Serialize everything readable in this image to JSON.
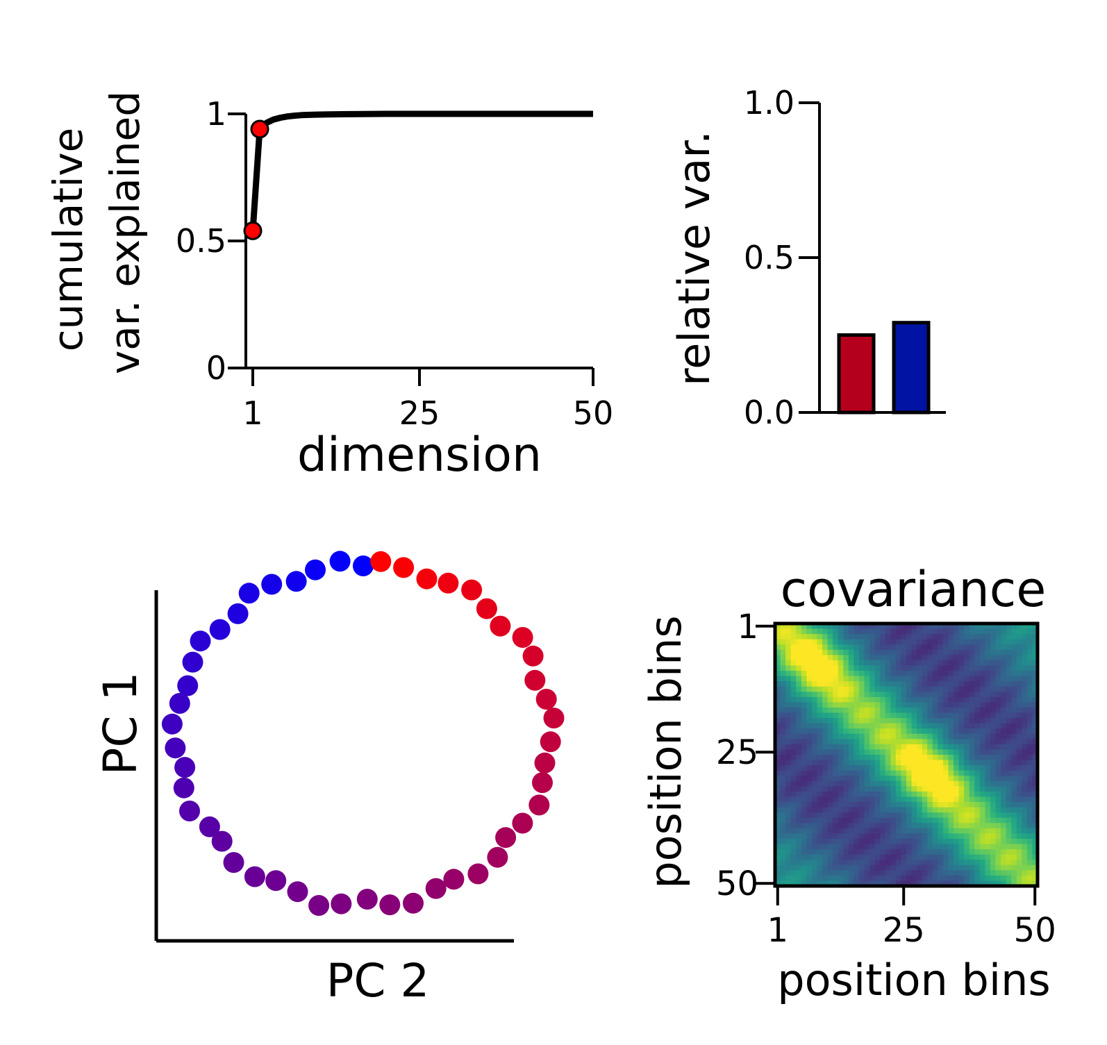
{
  "chart_data": [
    {
      "type": "line",
      "xlabel": "dimension",
      "ylabel": [
        "cumulative",
        "var. explained"
      ],
      "xlim": [
        0,
        50
      ],
      "ylim": [
        0,
        1
      ],
      "xticks": [
        1,
        25,
        50
      ],
      "xtick_labels": [
        "1",
        "25",
        "50"
      ],
      "yticks": [
        0,
        0.5,
        1
      ],
      "ytick_labels": [
        "0",
        "0.5",
        "1"
      ],
      "line_color": "#000000",
      "marker_color": "#ff0000",
      "series": [
        {
          "x": [
            1,
            2,
            3,
            4,
            5,
            6,
            7,
            8,
            10,
            12,
            15,
            20,
            25,
            30,
            40,
            50
          ],
          "values": [
            0.54,
            0.94,
            0.965,
            0.978,
            0.985,
            0.99,
            0.993,
            0.995,
            0.997,
            0.998,
            0.999,
            1.0,
            1.0,
            1.0,
            1.0,
            1.0
          ]
        }
      ],
      "highlighted_points": [
        {
          "x": 1,
          "y": 0.54
        },
        {
          "x": 2,
          "y": 0.94
        }
      ]
    },
    {
      "type": "bar",
      "ylabel": "relative var.",
      "ylim": [
        0,
        1
      ],
      "yticks": [
        0,
        0.5,
        1.0
      ],
      "ytick_labels": [
        "0.0",
        "0.5",
        "1.0"
      ],
      "categories": [
        "",
        ""
      ],
      "values": [
        0.25,
        0.29
      ],
      "colors": [
        "#b5001d",
        "#0013a3"
      ]
    },
    {
      "type": "scatter",
      "xlabel": "PC 2",
      "ylabel": "PC 1",
      "grid": false,
      "n_points": 50,
      "color_start": "#0000ff",
      "color_end": "#ff0000",
      "point_order": "counter-clockwise from top; hue shifts blue to purple to red",
      "shape": "ring"
    },
    {
      "type": "heatmap",
      "title": "covariance",
      "xlabel": "position bins",
      "ylabel": "position bins",
      "size": [
        50,
        50
      ],
      "xticks": [
        1,
        25,
        50
      ],
      "yticks": [
        1,
        25,
        50
      ],
      "xtick_labels": [
        "1",
        "25",
        "50"
      ],
      "ytick_labels": [
        "1",
        "25",
        "50"
      ],
      "colormap": "viridis",
      "peaks": [
        {
          "row": 7,
          "col": 7,
          "value": 0.85
        },
        {
          "row": 27,
          "col": 30,
          "value": 1.0
        }
      ]
    }
  ]
}
